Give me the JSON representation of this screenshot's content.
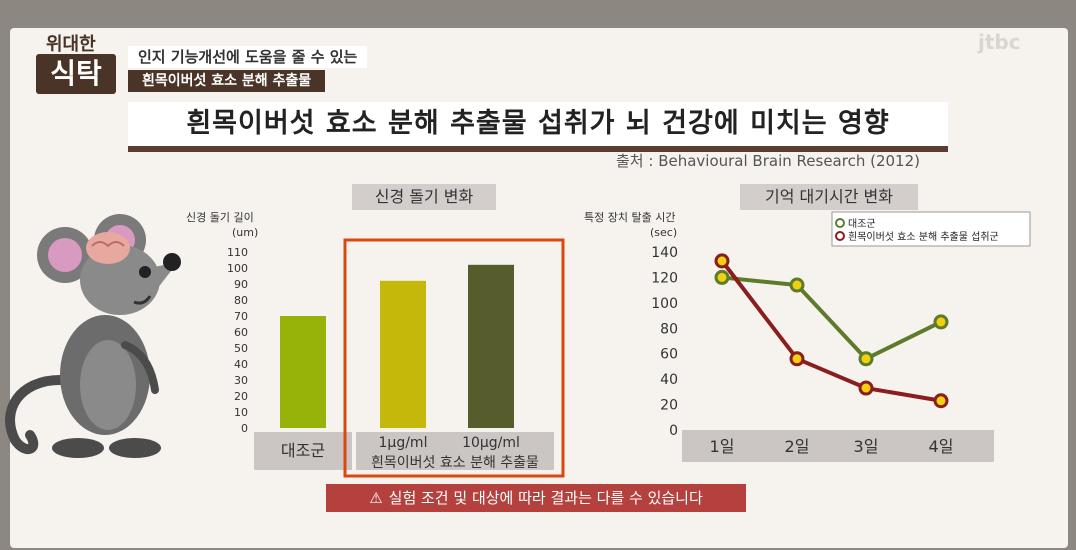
{
  "header": {
    "logo_line1": "위대한",
    "logo_line2": "식탁",
    "subtitle_line1": "인지 기능개선에 도움을 줄 수 있는",
    "subtitle_line2": "흰목이버섯 효소 분해 추출물",
    "watermark": "jtbc"
  },
  "title": "흰목이버섯 효소 분해 추출물 섭취가 뇌 건강에 미치는 영향",
  "source": "출처 : Behavioural Brain Research (2012)",
  "notice": "실험 조건 및 대상에 따라 결과는 다를 수 있습니다",
  "colors": {
    "brown": "#4a3327",
    "bar1": "#97b30a",
    "bar2": "#c6b80a",
    "bar3": "#565c2b",
    "line_control": "#5d7b2b",
    "line_treat": "#8b1d1d",
    "marker_fill": "#f1d011",
    "highlight": "#d9480f"
  },
  "chart_data": [
    {
      "type": "bar",
      "title": "신경 돌기 변화",
      "ylabel": "신경 돌기 길이",
      "yunit": "(um)",
      "ylim": [
        0,
        110
      ],
      "yticks": [
        "0",
        "10",
        "20",
        "30",
        "40",
        "50",
        "60",
        "70",
        "80",
        "90",
        "100",
        "110"
      ],
      "categories": [
        "대조군",
        "1μg/ml",
        "10μg/ml"
      ],
      "group_label": "흰목이버섯 효소 분해 추출물",
      "values": [
        70,
        92,
        102
      ]
    },
    {
      "type": "line",
      "title": "기억 대기시간 변화",
      "ylabel": "특정 장치 탈출 시간",
      "yunit": "(sec)",
      "ylim": [
        0,
        140
      ],
      "yticks": [
        "0",
        "20",
        "40",
        "60",
        "80",
        "100",
        "120",
        "140"
      ],
      "categories": [
        "1일",
        "2일",
        "3일",
        "4일"
      ],
      "series": [
        {
          "name": "대조군",
          "values": [
            120,
            114,
            56,
            85
          ]
        },
        {
          "name": "흰목이버섯 효소 분해 추출물 섭취군",
          "values": [
            133,
            56,
            33,
            23
          ]
        }
      ]
    }
  ]
}
